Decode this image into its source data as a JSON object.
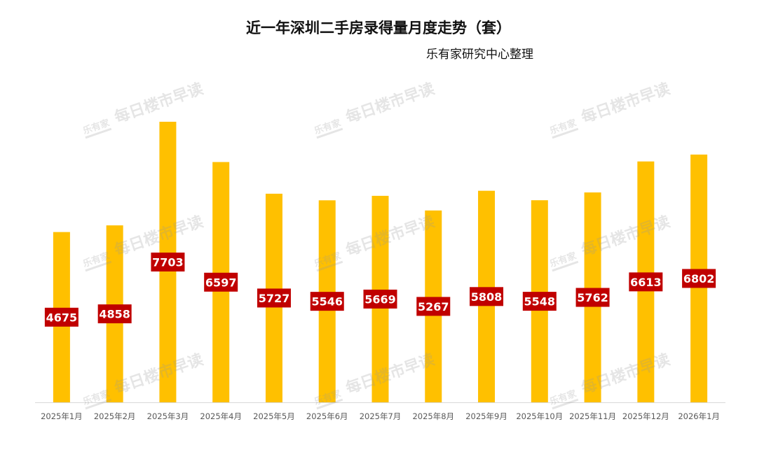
{
  "title": "近一年深圳二手房录得量月度走势（套）",
  "subtitle": "乐有家研究中心整理",
  "watermark": {
    "logo": "乐有家",
    "text": "每日楼市早读"
  },
  "colors": {
    "bar": "#FFC000",
    "label_bg": "#C00000",
    "label_text": "#FFFFFF",
    "axis": "#D9D9D9",
    "tick_text": "#595959"
  },
  "chart_data": {
    "type": "bar",
    "categories": [
      "2025年1月",
      "2025年2月",
      "2025年3月",
      "2025年4月",
      "2025年5月",
      "2025年6月",
      "2025年7月",
      "2025年8月",
      "2025年9月",
      "2025年10月",
      "2025年11月",
      "2025年12月",
      "2026年1月"
    ],
    "values": [
      4675,
      4858,
      7703,
      6597,
      5727,
      5546,
      5669,
      5267,
      5808,
      5548,
      5762,
      6613,
      6802
    ],
    "xlabel": "",
    "ylabel": "",
    "ylim": [
      0,
      7703
    ],
    "grid": false,
    "legend": "none",
    "data_labels": true
  }
}
